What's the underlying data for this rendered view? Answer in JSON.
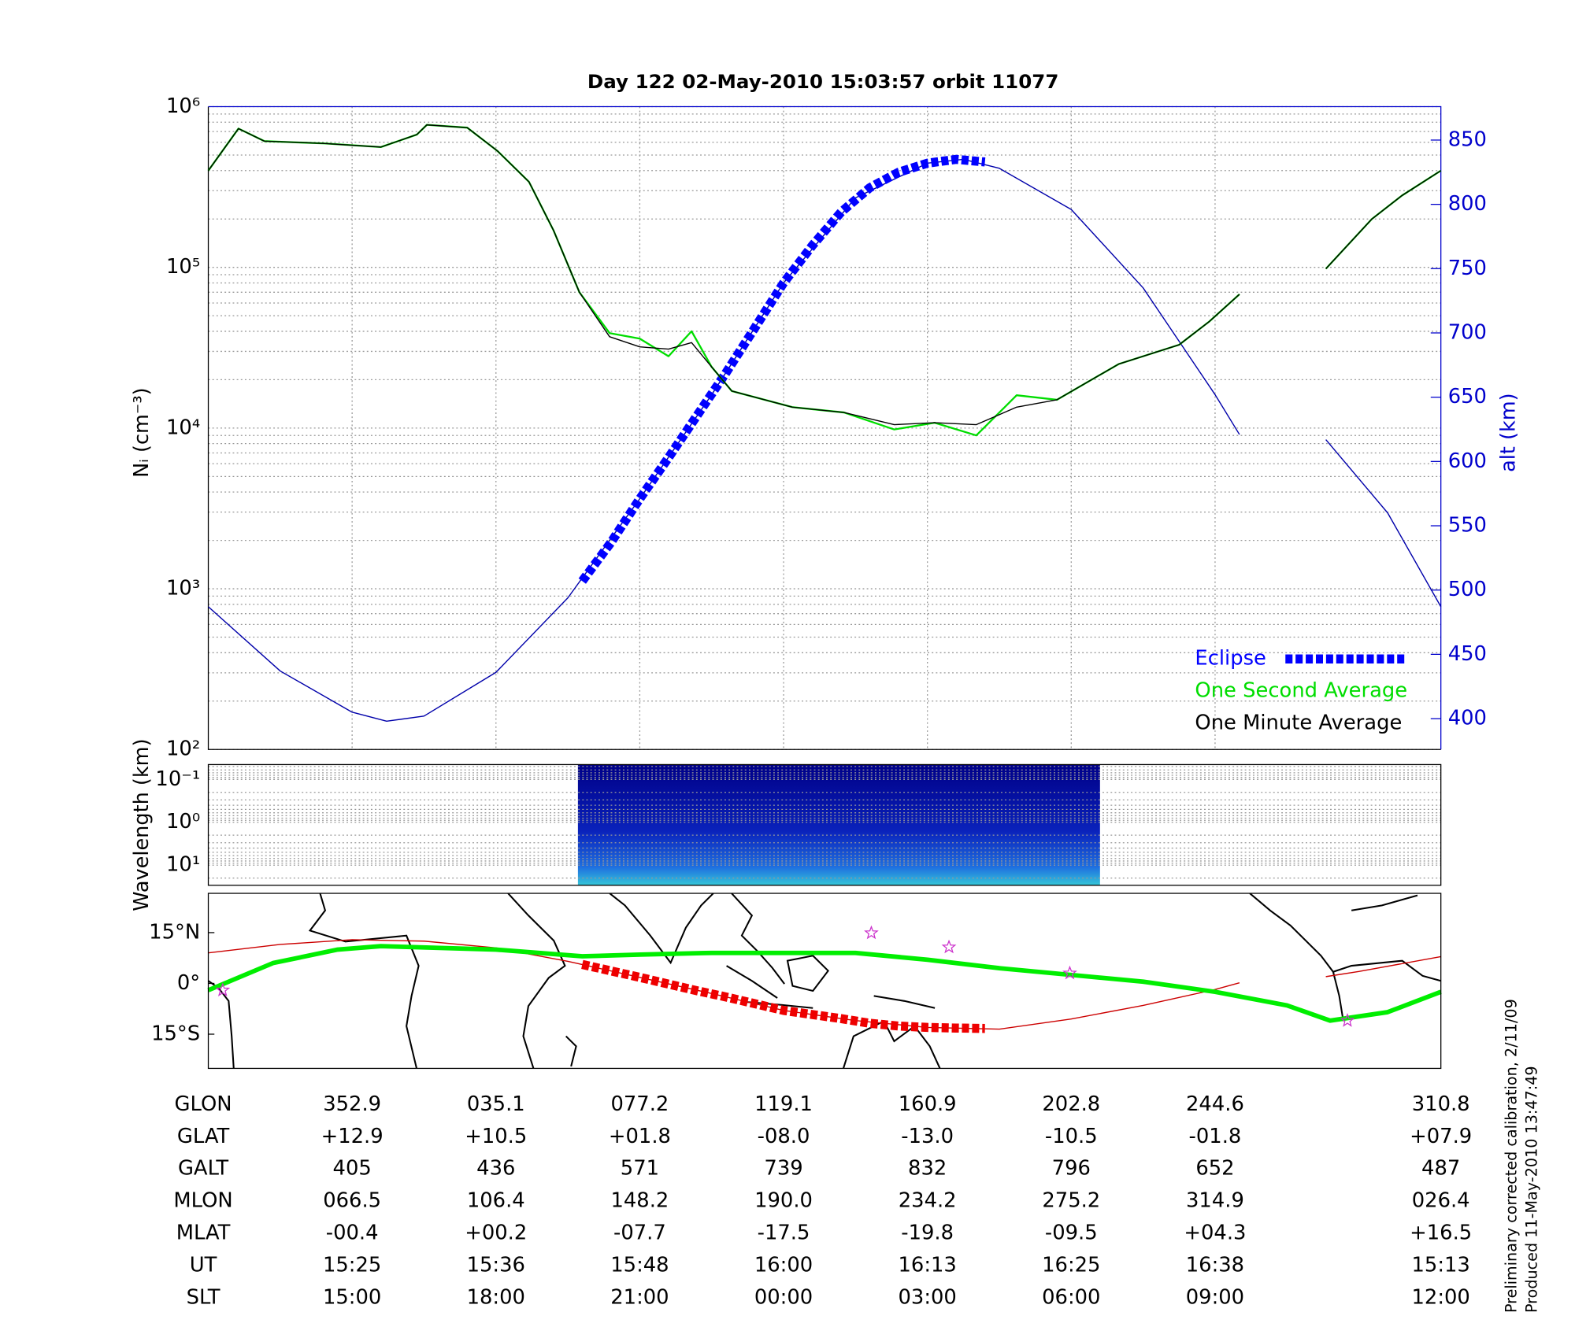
{
  "chart_data": [
    {
      "type": "line",
      "title": "Day 122  02-May-2010 15:03:57   orbit 11077",
      "ylabel": "Nᵢ (cm⁻³)",
      "y2label": "alt (km)",
      "log_y": true,
      "grid": true,
      "legend": "lower right",
      "xlim": [
        0,
        8.57
      ],
      "xticks": [
        1,
        2,
        3,
        4,
        5,
        6,
        7
      ],
      "ylim": [
        100,
        1000000
      ],
      "yticks": [
        {
          "value": 100,
          "label": "10²"
        },
        {
          "value": 1000,
          "label": "10³"
        },
        {
          "value": 10000,
          "label": "10⁴"
        },
        {
          "value": 100000,
          "label": "10⁵"
        },
        {
          "value": 1000000,
          "label": "10⁶"
        }
      ],
      "y2lim": [
        376,
        876
      ],
      "y2ticks": [
        400,
        450,
        500,
        550,
        600,
        650,
        700,
        750,
        800,
        850
      ],
      "y2color": "#0000cc",
      "x": [
        0,
        0.21,
        0.39,
        0.81,
        1.2,
        1.45,
        1.52,
        1.8,
        2.01,
        2.23,
        2.4,
        2.58,
        2.79,
        3.0,
        3.2,
        3.36,
        3.5,
        3.64,
        4.06,
        4.42,
        4.77,
        5.05,
        5.34,
        5.62,
        5.9,
        6.33,
        6.75,
        6.96,
        7.17,
        7.5,
        7.77,
        8.09,
        8.3,
        8.57
      ],
      "series": [
        {
          "color": "#0000aa",
          "axis": "y2",
          "style": "thin",
          "x": [
            0,
            0.5,
            1,
            1.24,
            1.5,
            2,
            2.5,
            3,
            3.5,
            4,
            4.5,
            5,
            5.25,
            5.5,
            6,
            6.5,
            7,
            7.17,
            7.5,
            7.77,
            8.2,
            8.57
          ],
          "values": [
            487,
            437,
            405,
            398,
            402,
            436,
            494,
            571,
            652,
            739,
            805,
            832,
            835,
            828,
            796,
            735,
            652,
            621,
            null,
            617,
            560,
            487
          ]
        },
        {
          "name": "Eclipse",
          "color": "#0000ff",
          "axis": "y2",
          "style": "dashed-thick",
          "x": [
            2.6,
            2.8,
            3.0,
            3.2,
            3.4,
            3.6,
            3.8,
            4.0,
            4.2,
            4.4,
            4.6,
            4.8,
            5.0,
            5.2,
            5.4
          ],
          "values": [
            507,
            537,
            571,
            603,
            636,
            669,
            704,
            739,
            768,
            794,
            813,
            825,
            832,
            835,
            833
          ]
        },
        {
          "name": "One Second Average",
          "color": "#00dd00",
          "style": "medium",
          "values": [
            400000,
            730000,
            610000,
            590000,
            560000,
            670000,
            770000,
            740000,
            530000,
            340000,
            170000,
            70000,
            39000,
            36000,
            28000,
            40000,
            24000,
            17000,
            13500,
            12500,
            9800,
            10800,
            9000,
            16000,
            15000,
            25000,
            33000,
            46000,
            68000,
            null,
            98000,
            200000,
            280000,
            400000
          ]
        },
        {
          "name": "One Minute Average",
          "color": "#000000",
          "style": "thin",
          "values": [
            400000,
            730000,
            610000,
            590000,
            560000,
            670000,
            770000,
            740000,
            530000,
            340000,
            170000,
            70000,
            37000,
            32000,
            31000,
            34000,
            24000,
            17000,
            13500,
            12500,
            10500,
            10800,
            10500,
            13500,
            15000,
            25000,
            33000,
            46000,
            68000,
            null,
            98000,
            200000,
            280000,
            400000
          ]
        }
      ]
    },
    {
      "type": "spectrogram",
      "ylabel": "Wavelength (km)",
      "log_y": true,
      "y_inverted": true,
      "xlim": [
        0,
        8.57
      ],
      "ylim": [
        0.045,
        29.5
      ],
      "yticks": [
        {
          "value": 0.1,
          "label": "10⁻¹"
        },
        {
          "value": 1,
          "label": "10⁰"
        },
        {
          "value": 10,
          "label": "10¹"
        }
      ],
      "x": [
        2.57,
        6.2
      ]
    },
    {
      "type": "map",
      "xlim": [
        0,
        8.57
      ],
      "ylim": [
        -25.1,
        26.6
      ],
      "yticks": [
        {
          "value": 15,
          "label": "15°N"
        },
        {
          "value": 0,
          "label": "0°"
        },
        {
          "value": -15,
          "label": "15°S"
        }
      ],
      "series": [
        {
          "color": "#cc0000",
          "style": "thin",
          "x": [
            0,
            0.5,
            1,
            1.5,
            2,
            2.5,
            3,
            3.5,
            4,
            4.5,
            5,
            5.5,
            6,
            6.5,
            7,
            7.17,
            7.5,
            7.77,
            8,
            8.57
          ],
          "values": [
            9,
            11.5,
            12.9,
            12.5,
            10.5,
            6.5,
            1.8,
            -3,
            -8,
            -11,
            -13,
            -13.5,
            -10.5,
            -6.5,
            -1.8,
            0.2,
            null,
            2,
            3.5,
            7.9
          ]
        },
        {
          "color": "#00ee00",
          "style": "thick",
          "x": [
            0,
            0.45,
            0.9,
            1.2,
            2,
            2.6,
            3,
            3.5,
            4,
            4.5,
            5,
            5.5,
            6,
            6.5,
            7,
            7.5,
            7.8,
            8.2,
            8.57
          ],
          "values": [
            -2,
            6,
            10,
            11,
            10,
            8,
            8.5,
            9,
            9,
            9,
            7,
            4.5,
            2.5,
            0.5,
            -2.5,
            -6.5,
            -11,
            -8.5,
            -2.5
          ]
        },
        {
          "color": "#ee0000",
          "style": "dashed-thick",
          "x": [
            2.6,
            2.8,
            3.0,
            3.2,
            3.4,
            3.6,
            3.8,
            4.0,
            4.2,
            4.4,
            4.6,
            4.8,
            5.0,
            5.2,
            5.4
          ],
          "values": [
            5.6,
            3.7,
            1.8,
            -0.2,
            -2.2,
            -4,
            -6,
            -8,
            -9.2,
            -10.4,
            -11.8,
            -12.6,
            -13,
            -13.2,
            -13.3
          ]
        }
      ],
      "points": {
        "color": "#cc33cc",
        "x": [
          0.1,
          4.61,
          5.15,
          5.99,
          7.92
        ],
        "y": [
          -2,
          14.9,
          10.7,
          3,
          -11
        ]
      }
    }
  ],
  "table": {
    "rows": [
      [
        "GLON",
        "352.9",
        "035.1",
        "077.2",
        "119.1",
        "160.9",
        "202.8",
        "244.6",
        "310.8"
      ],
      [
        "GLAT",
        "+12.9",
        "+10.5",
        "+01.8",
        "-08.0",
        "-13.0",
        "-10.5",
        "-01.8",
        "+07.9"
      ],
      [
        "GALT",
        "405",
        "436",
        "571",
        "739",
        "832",
        "796",
        "652",
        "487"
      ],
      [
        "MLON",
        "066.5",
        "106.4",
        "148.2",
        "190.0",
        "234.2",
        "275.2",
        "314.9",
        "026.4"
      ],
      [
        "MLAT",
        "-00.4",
        "+00.2",
        "-07.7",
        "-17.5",
        "-19.8",
        "-09.5",
        "+04.3",
        "+16.5"
      ],
      [
        "UT",
        "15:25",
        "15:36",
        "15:48",
        "16:00",
        "16:13",
        "16:25",
        "16:38",
        "15:13"
      ],
      [
        "SLT",
        "15:00",
        "18:00",
        "21:00",
        "00:00",
        "03:00",
        "06:00",
        "09:00",
        "12:00"
      ]
    ]
  },
  "footer": [
    "Preliminary corrected calibration, 2/11/09",
    "Produced 11-May-2010 13:47:49"
  ]
}
